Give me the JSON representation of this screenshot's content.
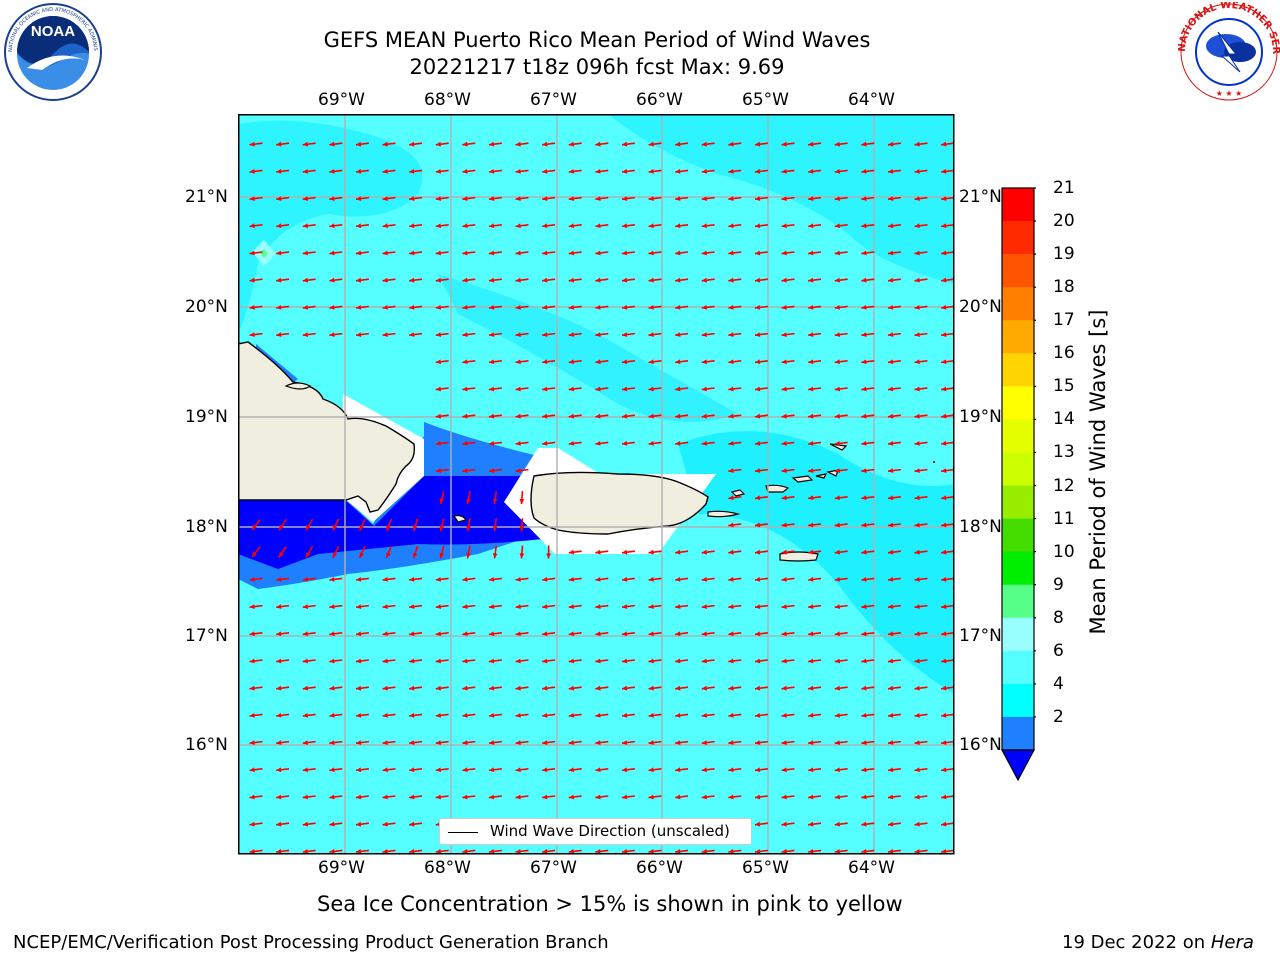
{
  "header": {
    "title_line1": "GEFS MEAN Puerto Rico Mean Period of Wind Waves",
    "title_line2": "20221217 t18z 096h fcst   Max: 9.69"
  },
  "logos": {
    "noara_text": "NOAA",
    "noaa_ring_text": "NATIONAL OCEANIC AND ATMOSPHERIC ADMINISTRATION · U.S. DEPARTMENT OF COMMERCE",
    "nws_ring_text": "NATIONAL WEATHER SERVICE"
  },
  "map": {
    "lon_labels": [
      "69°W",
      "68°W",
      "67°W",
      "66°W",
      "65°W",
      "64°W"
    ],
    "lat_labels": [
      "21°N",
      "20°N",
      "19°N",
      "18°N",
      "17°N",
      "16°N"
    ],
    "legend_label": "Wind Wave Direction (unscaled)",
    "wind_direction": "from east",
    "background_color": "#55ffff",
    "arrow_color": "#ff0000"
  },
  "colorbar": {
    "title": "Mean Period of Wind Waves [s]",
    "levels": [
      "21",
      "20",
      "19",
      "18",
      "17",
      "16",
      "15",
      "14",
      "13",
      "12",
      "11",
      "10",
      "9",
      "8",
      "6",
      "4",
      "2"
    ],
    "colors_top_to_bottom": [
      "#ff0000",
      "#ff2a00",
      "#ff5500",
      "#ff8000",
      "#ffaa00",
      "#ffd400",
      "#ffff00",
      "#e6ff00",
      "#ccff00",
      "#99ee00",
      "#44dd00",
      "#00ee00",
      "#55ff88",
      "#99ffff",
      "#55ffff",
      "#00ffff",
      "#1e7fff"
    ],
    "extend_color": "#0000ff"
  },
  "footer": {
    "caption": "Sea Ice Concentration > 15% is shown in pink to yellow",
    "left": "NCEP/EMC/Verification Post Processing Product Generation Branch",
    "date": "19 Dec 2022 on ",
    "machine": "Hera"
  }
}
